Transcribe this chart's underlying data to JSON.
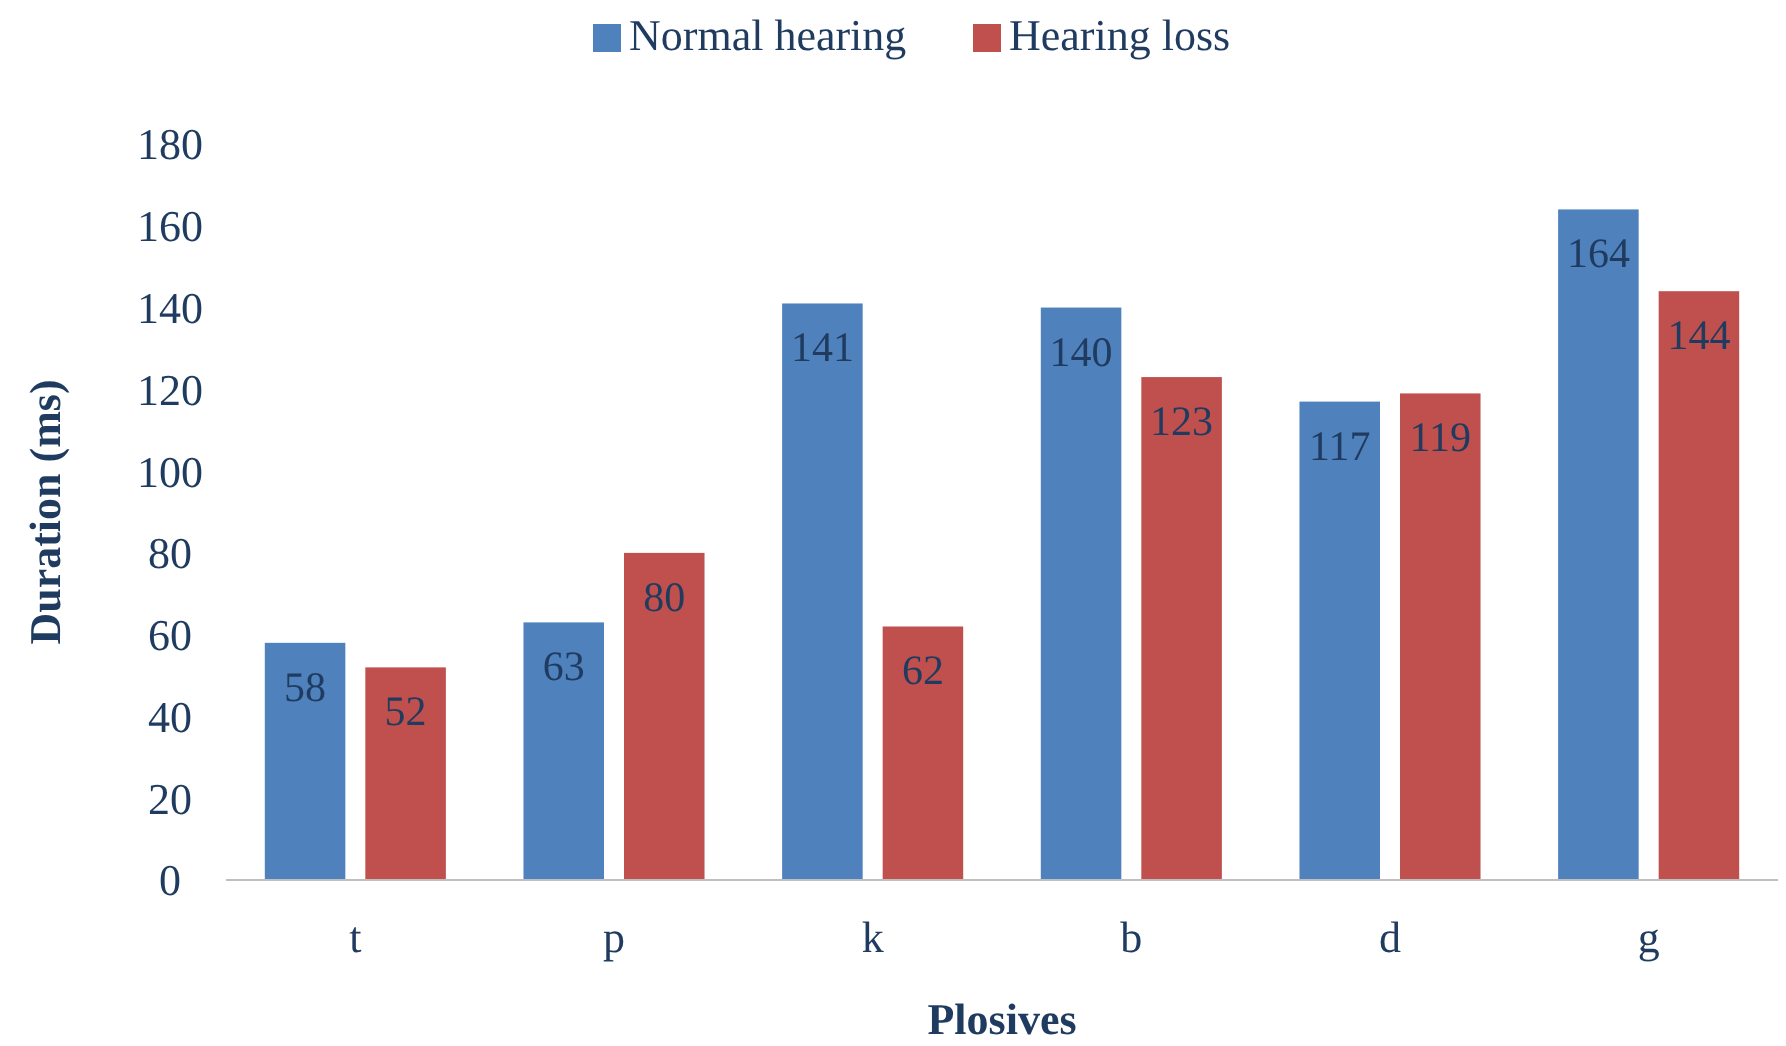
{
  "chart_data": {
    "type": "bar",
    "categories": [
      "t",
      "p",
      "k",
      "b",
      "d",
      "g"
    ],
    "series": [
      {
        "name": "Normal hearing",
        "color": "#4f81bd",
        "values": [
          58,
          63,
          141,
          140,
          117,
          164
        ]
      },
      {
        "name": "Hearing loss",
        "color": "#c0504d",
        "values": [
          52,
          80,
          62,
          123,
          119,
          144
        ]
      }
    ],
    "ylim": [
      0,
      180
    ],
    "yticks": [
      0,
      20,
      40,
      60,
      80,
      100,
      120,
      140,
      160,
      180
    ],
    "xlabel": "Plosives",
    "ylabel": "Duration (ms)",
    "legend": "top",
    "data_labels": true,
    "grid": false
  }
}
